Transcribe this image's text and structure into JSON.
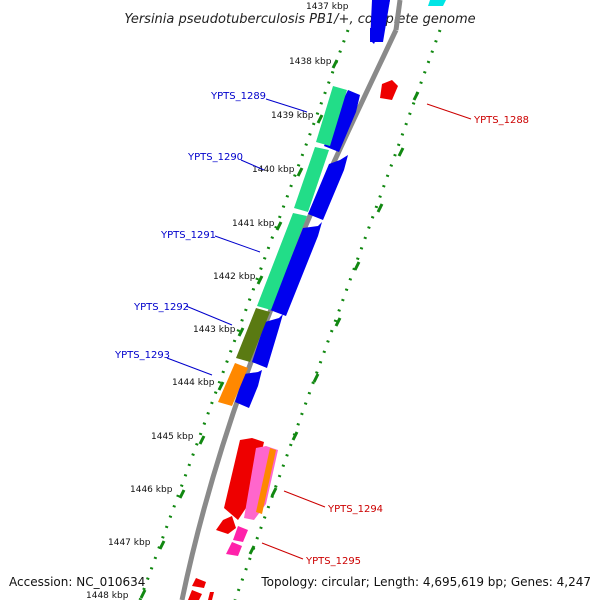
{
  "title": "Yersinia pseudotuberculosis PB1/+, complete genome",
  "accession": "Accession: NC_010634",
  "topology": "Topology: circular; Length: 4,695,619 bp; Genes: 4,247",
  "colors": {
    "forward_label": "#0000cc",
    "reverse_label": "#cc0000",
    "backbone": "#8a8a8a",
    "cds_blue": "#0000ee",
    "cds_red": "#ee0000",
    "tick_green": "#118811"
  },
  "kbp_ticks": [
    "1437 kbp",
    "1438 kbp",
    "1439 kbp",
    "1440 kbp",
    "1441 kbp",
    "1442 kbp",
    "1443 kbp",
    "1444 kbp",
    "1445 kbp",
    "1446 kbp",
    "1447 kbp",
    "1448 kbp"
  ],
  "genes_forward": [
    {
      "id": "g1289",
      "label": "YPTS_1289"
    },
    {
      "id": "g1290",
      "label": "YPTS_1290"
    },
    {
      "id": "g1291",
      "label": "YPTS_1291"
    },
    {
      "id": "g1292",
      "label": "YPTS_1292"
    },
    {
      "id": "g1293",
      "label": "YPTS_1293"
    }
  ],
  "genes_reverse": [
    {
      "id": "g1288",
      "label": "YPTS_1288"
    },
    {
      "id": "g1294",
      "label": "YPTS_1294"
    },
    {
      "id": "g1295",
      "label": "YPTS_1295"
    }
  ]
}
